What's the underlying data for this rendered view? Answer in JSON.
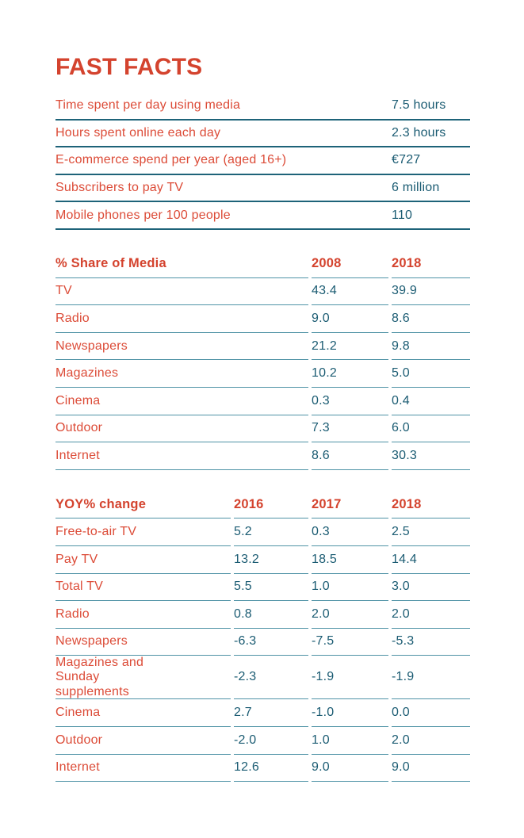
{
  "title": "FAST FACTS",
  "colors": {
    "accent_red": "#d4432e",
    "label_red": "#dc4b37",
    "value_teal": "#1a5b72",
    "rule_dark": "#1e6379",
    "rule_light": "#4f93a6"
  },
  "fast_facts": [
    {
      "label": "Time spent per day using media",
      "value": "7.5 hours"
    },
    {
      "label": "Hours spent online each day",
      "value": "2.3 hours"
    },
    {
      "label": "E-commerce spend per year (aged 16+)",
      "value": "€727"
    },
    {
      "label": "Subscribers to pay TV",
      "value": "6 million"
    },
    {
      "label": "Mobile phones per 100 people",
      "value": "110"
    }
  ],
  "media_share": {
    "header": [
      "% Share of Media",
      "2008",
      "2018"
    ],
    "rows": [
      [
        "TV",
        "43.4",
        "39.9"
      ],
      [
        "Radio",
        "9.0",
        "8.6"
      ],
      [
        "Newspapers",
        "21.2",
        "9.8"
      ],
      [
        "Magazines",
        "10.2",
        "5.0"
      ],
      [
        "Cinema",
        "0.3",
        "0.4"
      ],
      [
        "Outdoor",
        "7.3",
        "6.0"
      ],
      [
        "Internet",
        "8.6",
        "30.3"
      ]
    ]
  },
  "yoy_change": {
    "header": [
      "YOY% change",
      "2016",
      "2017",
      "2018"
    ],
    "rows": [
      [
        "Free-to-air TV",
        "5.2",
        "0.3",
        "2.5"
      ],
      [
        "Pay TV",
        "13.2",
        "18.5",
        "14.4"
      ],
      [
        "Total TV",
        "5.5",
        "1.0",
        "3.0"
      ],
      [
        "Radio",
        "0.8",
        "2.0",
        "2.0"
      ],
      [
        "Newspapers",
        "-6.3",
        "-7.5",
        "-5.3"
      ],
      [
        "Magazines and Sunday supplements",
        "-2.3",
        "-1.9",
        "-1.9"
      ],
      [
        "Cinema",
        "2.7",
        "-1.0",
        "0.0"
      ],
      [
        "Outdoor",
        "-2.0",
        "1.0",
        "2.0"
      ],
      [
        "Internet",
        "12.6",
        "9.0",
        "9.0"
      ]
    ]
  }
}
